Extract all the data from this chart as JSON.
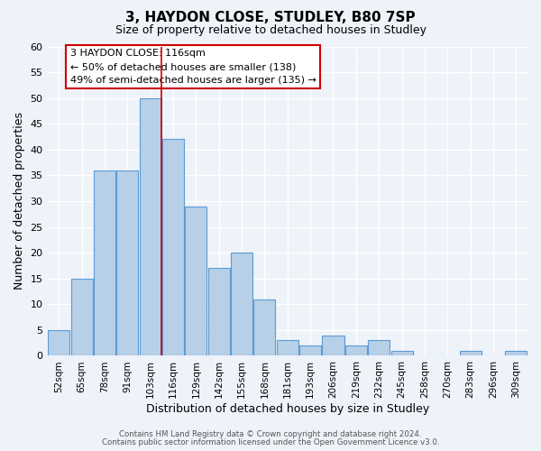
{
  "title1": "3, HAYDON CLOSE, STUDLEY, B80 7SP",
  "title2": "Size of property relative to detached houses in Studley",
  "xlabel": "Distribution of detached houses by size in Studley",
  "ylabel": "Number of detached properties",
  "bar_labels": [
    "52sqm",
    "65sqm",
    "78sqm",
    "91sqm",
    "103sqm",
    "116sqm",
    "129sqm",
    "142sqm",
    "155sqm",
    "168sqm",
    "181sqm",
    "193sqm",
    "206sqm",
    "219sqm",
    "232sqm",
    "245sqm",
    "258sqm",
    "270sqm",
    "283sqm",
    "296sqm",
    "309sqm"
  ],
  "bar_values": [
    5,
    15,
    36,
    36,
    50,
    42,
    29,
    17,
    20,
    11,
    3,
    2,
    4,
    2,
    3,
    1,
    0,
    0,
    1,
    0,
    1
  ],
  "bar_color": "#b8cfe8",
  "bar_edge_color": "#5b9bd5",
  "highlight_line_color": "#cc0000",
  "highlight_bar_index": 4,
  "ylim": [
    0,
    60
  ],
  "yticks": [
    0,
    5,
    10,
    15,
    20,
    25,
    30,
    35,
    40,
    45,
    50,
    55,
    60
  ],
  "annotation_line1": "3 HAYDON CLOSE: 116sqm",
  "annotation_line2": "← 50% of detached houses are smaller (138)",
  "annotation_line3": "49% of semi-detached houses are larger (135) →",
  "footer1": "Contains HM Land Registry data © Crown copyright and database right 2024.",
  "footer2": "Contains public sector information licensed under the Open Government Licence v3.0.",
  "bg_color": "#eef2f9"
}
